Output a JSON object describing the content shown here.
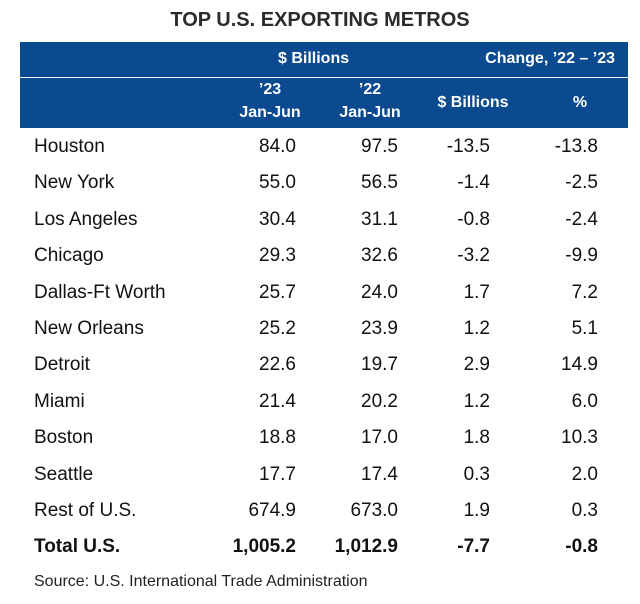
{
  "title": "TOP U.S. EXPORTING METROS",
  "header": {
    "group_billions": "$ Billions",
    "group_change": "Change, ’22 – ’23",
    "col1_year": "’23",
    "col1_period": "Jan-Jun",
    "col2_year": "’22",
    "col2_period": "Jan-Jun",
    "col3": "$ Billions",
    "col4": "%"
  },
  "rows": [
    {
      "metro": "Houston",
      "y2023": "84.0",
      "y2022": "97.5",
      "change_billions": "-13.5",
      "change_pct": "-13.8"
    },
    {
      "metro": "New York",
      "y2023": "55.0",
      "y2022": "56.5",
      "change_billions": "-1.4",
      "change_pct": "-2.5"
    },
    {
      "metro": "Los Angeles",
      "y2023": "30.4",
      "y2022": "31.1",
      "change_billions": "-0.8",
      "change_pct": "-2.4"
    },
    {
      "metro": "Chicago",
      "y2023": "29.3",
      "y2022": "32.6",
      "change_billions": "-3.2",
      "change_pct": "-9.9"
    },
    {
      "metro": "Dallas-Ft Worth",
      "y2023": "25.7",
      "y2022": "24.0",
      "change_billions": "1.7",
      "change_pct": "7.2"
    },
    {
      "metro": "New Orleans",
      "y2023": "25.2",
      "y2022": "23.9",
      "change_billions": "1.2",
      "change_pct": "5.1"
    },
    {
      "metro": "Detroit",
      "y2023": "22.6",
      "y2022": "19.7",
      "change_billions": "2.9",
      "change_pct": "14.9"
    },
    {
      "metro": "Miami",
      "y2023": "21.4",
      "y2022": "20.2",
      "change_billions": "1.2",
      "change_pct": "6.0"
    },
    {
      "metro": "Boston",
      "y2023": "18.8",
      "y2022": "17.0",
      "change_billions": "1.8",
      "change_pct": "10.3"
    },
    {
      "metro": "Seattle",
      "y2023": "17.7",
      "y2022": "17.4",
      "change_billions": "0.3",
      "change_pct": "2.0"
    },
    {
      "metro": "Rest of U.S.",
      "y2023": "674.9",
      "y2022": "673.0",
      "change_billions": "1.9",
      "change_pct": "0.3"
    }
  ],
  "total": {
    "metro": "Total U.S.",
    "y2023": "1,005.2",
    "y2022": "1,012.9",
    "change_billions": "-7.7",
    "change_pct": "-0.8"
  },
  "source": "Source: U.S. International Trade Administration",
  "colors": {
    "header_bg": "#0b4a8e",
    "header_text": "#ffffff"
  }
}
